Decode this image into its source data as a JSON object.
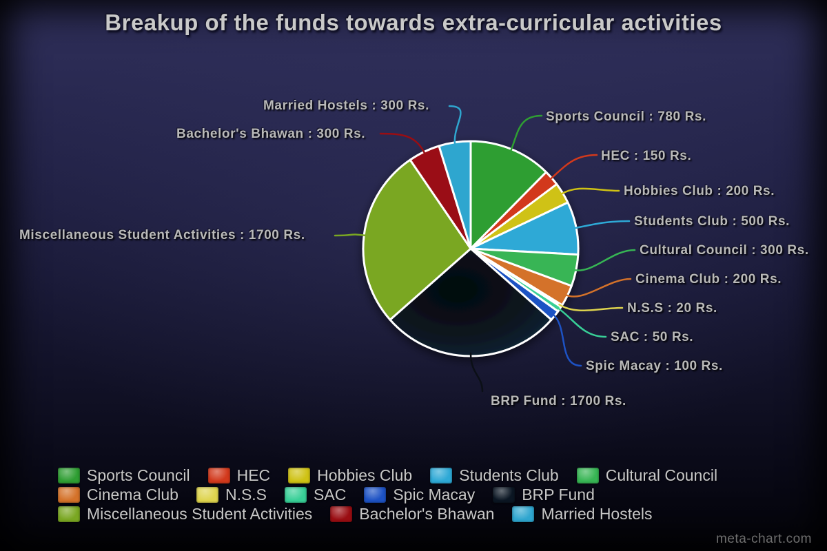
{
  "page": {
    "title": "Breakup of the funds towards extra-curricular activities",
    "watermark": "meta-chart.com"
  },
  "colors": {
    "background_top": "#2f2f5a",
    "background_bottom": "#040409",
    "title_text": "#c9c9c9",
    "label_text": "#b9b9b9",
    "legend_text": "#c7c7c7",
    "watermark_text": "#6f6f6f",
    "slice_border": "#ffffff"
  },
  "chart_data": {
    "type": "pie",
    "title": "Breakup of the funds towards extra-curricular activities",
    "unit": "Rs.",
    "total": 6300,
    "legend_position": "bottom",
    "categories": [
      "Sports Council",
      "HEC",
      "Hobbies Club",
      "Students Club",
      "Cultural Council",
      "Cinema Club",
      "N.S.S",
      "SAC",
      "Spic Macay",
      "BRP Fund",
      "Miscellaneous Student Activities",
      "Bachelor's Bhawan",
      "Married Hostels"
    ],
    "values": [
      780,
      150,
      200,
      500,
      300,
      200,
      20,
      50,
      100,
      1700,
      1700,
      300,
      300
    ],
    "slice_colors": [
      "#2f9e33",
      "#d2391c",
      "#cfc214",
      "#2ea9d6",
      "#37b554",
      "#d4722a",
      "#ded44e",
      "#38cf97",
      "#1d52c4",
      "#0b1623",
      "#7aa722",
      "#9a0d12",
      "#2fa6cf"
    ],
    "annotations": [
      "Sports Council : 780 Rs.",
      "HEC : 150 Rs.",
      "Hobbies Club : 200 Rs.",
      "Students Club : 500 Rs.",
      "Cultural Council : 300 Rs.",
      "Cinema Club : 200 Rs.",
      "N.S.S : 20 Rs.",
      "SAC : 50 Rs.",
      "Spic Macay : 100 Rs.",
      "BRP Fund : 1700 Rs.",
      "Miscellaneous Student Activities : 1700 Rs.",
      "Bachelor's Bhawan : 300 Rs.",
      "Married Hostels : 300 Rs."
    ]
  }
}
